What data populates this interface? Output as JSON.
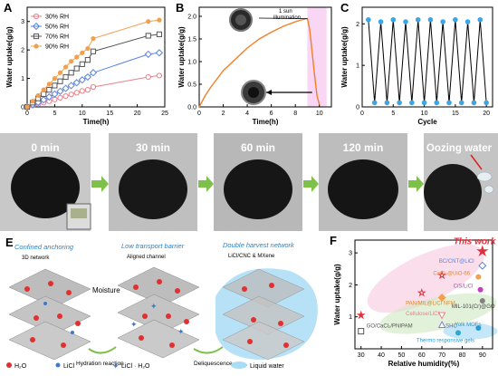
{
  "panels": {
    "A": "A",
    "B": "B",
    "C": "C",
    "D": "D",
    "E": "E",
    "F": "F"
  },
  "chart_data": [
    {
      "id": "A",
      "type": "line",
      "xlabel": "Time(h)",
      "ylabel": "Water uptake(g/g)",
      "xlim": [
        0,
        25
      ],
      "ylim": [
        0,
        3.5
      ],
      "xticks": [
        0,
        5,
        10,
        15,
        20,
        25
      ],
      "yticks": [
        0,
        1,
        2,
        3
      ],
      "legend_position": "top-left",
      "series": [
        {
          "name": "30% RH",
          "color": "#e8808a",
          "marker": "circle-open",
          "x": [
            0,
            1,
            2,
            3,
            4,
            5,
            6,
            7,
            8,
            9,
            10,
            11,
            12,
            22,
            24
          ],
          "y": [
            0,
            0.05,
            0.1,
            0.15,
            0.2,
            0.26,
            0.32,
            0.38,
            0.44,
            0.5,
            0.56,
            0.6,
            0.7,
            1.05,
            1.1
          ]
        },
        {
          "name": "50% RH",
          "color": "#5a84e0",
          "marker": "diamond-open",
          "x": [
            0,
            1,
            2,
            3,
            4,
            5,
            6,
            7,
            8,
            9,
            10,
            11,
            12,
            22,
            24
          ],
          "y": [
            0,
            0.08,
            0.16,
            0.25,
            0.35,
            0.45,
            0.55,
            0.65,
            0.75,
            0.85,
            0.95,
            1.05,
            1.2,
            1.85,
            1.9
          ]
        },
        {
          "name": "70% RH",
          "color": "#555555",
          "marker": "square-open",
          "x": [
            0,
            1,
            2,
            3,
            4,
            5,
            6,
            7,
            8,
            9,
            10,
            11,
            12,
            22,
            24
          ],
          "y": [
            0,
            0.15,
            0.3,
            0.45,
            0.6,
            0.75,
            0.9,
            1.05,
            1.2,
            1.35,
            1.5,
            1.65,
            1.95,
            2.5,
            2.55
          ]
        },
        {
          "name": "90% RH",
          "color": "#f0a050",
          "marker": "circle",
          "x": [
            0,
            1,
            2,
            3,
            4,
            5,
            6,
            7,
            8,
            9,
            10,
            11,
            12,
            22,
            24
          ],
          "y": [
            0,
            0.2,
            0.4,
            0.6,
            0.8,
            1.0,
            1.2,
            1.4,
            1.6,
            1.75,
            1.9,
            2.05,
            2.4,
            3.0,
            3.05
          ]
        }
      ]
    },
    {
      "id": "B",
      "type": "line",
      "xlabel": "Time(h)",
      "ylabel": "Water uptake(g/g)",
      "xlim": [
        0,
        11
      ],
      "ylim": [
        0,
        2.2
      ],
      "xticks": [
        0,
        2,
        4,
        6,
        8,
        10
      ],
      "yticks": [
        0.0,
        0.5,
        1.0,
        1.5,
        2.0
      ],
      "annotation": "1 sun illumination",
      "highlight_x": [
        9,
        10.6
      ],
      "series": [
        {
          "name": "",
          "color": "#f07f2a",
          "x": [
            0,
            0.5,
            1,
            2,
            3,
            4,
            5,
            6,
            7,
            8,
            8.5,
            9,
            9.2,
            9.4,
            9.6,
            9.8,
            10
          ],
          "y": [
            0,
            0.25,
            0.45,
            0.8,
            1.05,
            1.3,
            1.5,
            1.65,
            1.78,
            1.88,
            1.92,
            1.95,
            1.7,
            1.2,
            0.7,
            0.25,
            0.05
          ]
        }
      ]
    },
    {
      "id": "C",
      "type": "line",
      "xlabel": "Cycle",
      "ylabel": "Water uptake(g/g)",
      "xlim": [
        0,
        21
      ],
      "ylim": [
        0,
        2.4
      ],
      "xticks": [
        0,
        5,
        10,
        15,
        20
      ],
      "yticks": [
        0,
        1,
        2
      ],
      "series": [
        {
          "name": "",
          "color": "#000000",
          "marker_color": "#3aa6e8",
          "x": [
            1,
            2,
            3,
            4,
            5,
            6,
            7,
            8,
            9,
            10,
            11,
            12,
            13,
            14,
            15,
            16,
            17,
            18,
            19,
            20
          ],
          "y": [
            2.1,
            0.1,
            2.05,
            0.1,
            2.1,
            0.1,
            2.05,
            0.1,
            2.1,
            0.1,
            2.1,
            0.1,
            2.05,
            0.1,
            2.1,
            0.1,
            2.05,
            0.1,
            2.1,
            0.1
          ]
        }
      ]
    },
    {
      "id": "F",
      "type": "scatter",
      "xlabel": "Relative humidity(%)",
      "ylabel": "Water uptake(g/g)",
      "xlim": [
        27,
        95
      ],
      "ylim": [
        0,
        3.4
      ],
      "xticks": [
        30,
        40,
        50,
        60,
        70,
        80,
        90
      ],
      "yticks": [
        1,
        2,
        3
      ],
      "points": [
        {
          "label": "This work",
          "x": 90,
          "y": 3.05,
          "color": "#e0303e",
          "marker": "star",
          "big": true
        },
        {
          "label": "",
          "x": 30,
          "y": 1.05,
          "color": "#e0303e",
          "marker": "star"
        },
        {
          "label": "",
          "x": 60,
          "y": 1.75,
          "color": "#e0303e",
          "marker": "star-open"
        },
        {
          "label": "",
          "x": 70,
          "y": 2.3,
          "color": "#e0303e",
          "marker": "star-open"
        },
        {
          "label": "BC/CNT@LiCl",
          "x": 90,
          "y": 2.6,
          "color": "#5a84e0",
          "marker": "diamond-open"
        },
        {
          "label": "CaCl₂@UiO-66",
          "x": 88,
          "y": 2.25,
          "color": "#f0a050",
          "marker": "circle"
        },
        {
          "label": "CiS/LiCl",
          "x": 89,
          "y": 1.85,
          "color": "#c040c0",
          "marker": "circle"
        },
        {
          "label": "MIL-101(Cr)@GO",
          "x": 90,
          "y": 1.5,
          "color": "#808080",
          "marker": "circle"
        },
        {
          "label": "PAN/MIL@LiCl NFM",
          "x": 70,
          "y": 1.6,
          "color": "#f0a050",
          "marker": "diamond"
        },
        {
          "label": "Cellulose/LiCl",
          "x": 70,
          "y": 1.05,
          "color": "#e8808a",
          "marker": "triangle-down"
        },
        {
          "label": "SHC",
          "x": 70,
          "y": 0.75,
          "color": "#8080d0",
          "marker": "triangle-up"
        },
        {
          "label": "GO/CaCl₂/PNIPAM",
          "x": 30,
          "y": 0.55,
          "color": "#555555",
          "marker": "square-open"
        },
        {
          "label": "Yolk MOFs",
          "x": 88,
          "y": 0.65,
          "color": "#2a9ad0",
          "marker": "circle"
        },
        {
          "label": "Thermo responsive gels",
          "x": 78,
          "y": 0.5,
          "color": "#2aaad0",
          "marker": "circle"
        }
      ]
    }
  ],
  "panelB": {
    "annotation_lines": [
      "1 sun",
      "illumination"
    ]
  },
  "panelD": {
    "times": [
      "0 min",
      "30 min",
      "60 min",
      "120 min"
    ],
    "oozing": "Oozing water"
  },
  "panelE": {
    "titles": [
      "Confined anchoring",
      "Low transport barrier",
      "Double harvest network"
    ],
    "subtitles": [
      "3D network",
      "Aligned channel",
      "LiCl/CNC & MXene"
    ],
    "labels": {
      "moisture": "Moisture",
      "hydration": "Hydration reaction",
      "deliquescence": "Deliquescence"
    },
    "legend": [
      "H₂O",
      "LiCl",
      "LiCl · H₂O",
      "Liquid water"
    ]
  }
}
